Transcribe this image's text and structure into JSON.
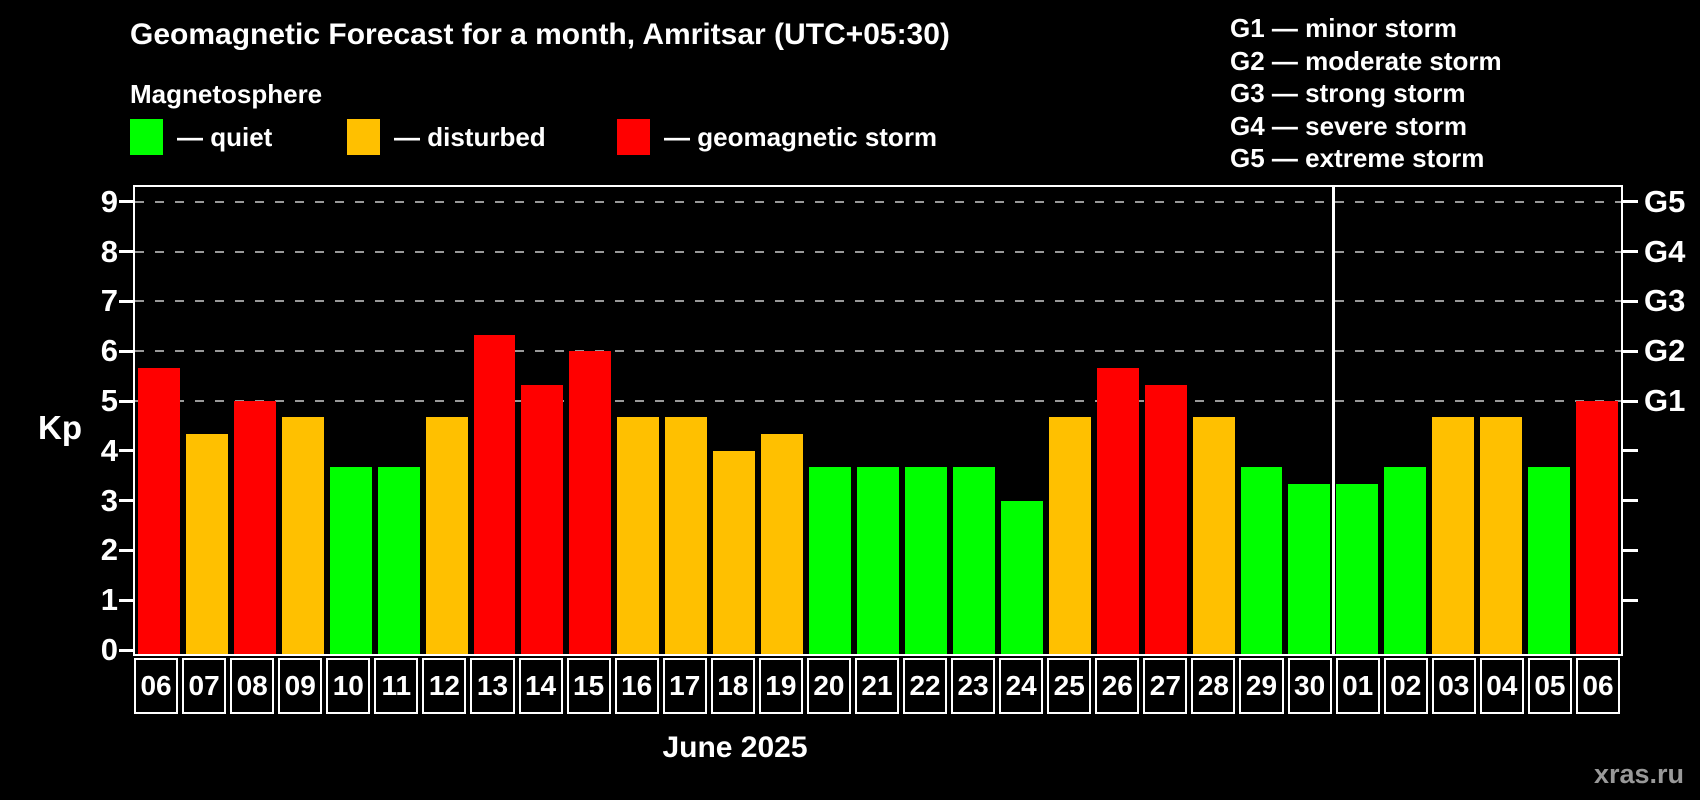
{
  "title": "Geomagnetic Forecast for a month, Amritsar (UTC+05:30)",
  "subtitle": "Magnetosphere",
  "legend": [
    {
      "status": "quiet",
      "label": "— quiet",
      "color": "#00ff00"
    },
    {
      "status": "disturbed",
      "label": "— disturbed",
      "color": "#ffc000"
    },
    {
      "status": "storm",
      "label": "— geomagnetic storm",
      "color": "#ff0000"
    }
  ],
  "g_legend": [
    "G1 — minor storm",
    "G2 — moderate storm",
    "G3 — strong storm",
    "G4 — severe storm",
    "G5 — extreme storm"
  ],
  "colors": {
    "quiet": "#00ff00",
    "disturbed": "#ffc000",
    "storm": "#ff0000",
    "gridline": "#999999",
    "axis": "#ffffff",
    "background": "#000000"
  },
  "watermark": "xras.ru",
  "chart_data": {
    "type": "bar",
    "title": "Geomagnetic Forecast for a month, Amritsar (UTC+05:30)",
    "xlabel": "June 2025",
    "ylabel": "Kp",
    "ylim": [
      0,
      9.4
    ],
    "yticks": [
      0,
      1,
      2,
      3,
      4,
      5,
      6,
      7,
      8,
      9
    ],
    "gridlines_at": [
      5,
      6,
      7,
      8,
      9
    ],
    "grid": "dashed horizontal at Kp 5-9 only",
    "legend_position": "top",
    "right_axis": [
      {
        "kp": 5,
        "label": "G1"
      },
      {
        "kp": 6,
        "label": "G2"
      },
      {
        "kp": 7,
        "label": "G3"
      },
      {
        "kp": 8,
        "label": "G4"
      },
      {
        "kp": 9,
        "label": "G5"
      }
    ],
    "categories": [
      "06",
      "07",
      "08",
      "09",
      "10",
      "11",
      "12",
      "13",
      "14",
      "15",
      "16",
      "17",
      "18",
      "19",
      "20",
      "21",
      "22",
      "23",
      "24",
      "25",
      "26",
      "27",
      "28",
      "29",
      "30",
      "01",
      "02",
      "03",
      "04",
      "05",
      "06"
    ],
    "values": [
      5.67,
      4.33,
      5.0,
      4.67,
      3.67,
      3.67,
      4.67,
      6.33,
      5.33,
      6.0,
      4.67,
      4.67,
      4.0,
      4.33,
      3.67,
      3.67,
      3.67,
      3.67,
      3.0,
      4.67,
      5.67,
      5.33,
      4.67,
      3.67,
      3.33,
      3.33,
      3.67,
      4.67,
      4.67,
      3.67,
      5.0
    ],
    "statuses": [
      "storm",
      "disturbed",
      "storm",
      "disturbed",
      "quiet",
      "quiet",
      "disturbed",
      "storm",
      "storm",
      "storm",
      "disturbed",
      "disturbed",
      "disturbed",
      "disturbed",
      "quiet",
      "quiet",
      "quiet",
      "quiet",
      "quiet",
      "disturbed",
      "storm",
      "storm",
      "disturbed",
      "quiet",
      "quiet",
      "quiet",
      "quiet",
      "disturbed",
      "disturbed",
      "quiet",
      "storm"
    ],
    "month_boundary_after_day": "30",
    "month_boundary_slot_index": 25
  }
}
